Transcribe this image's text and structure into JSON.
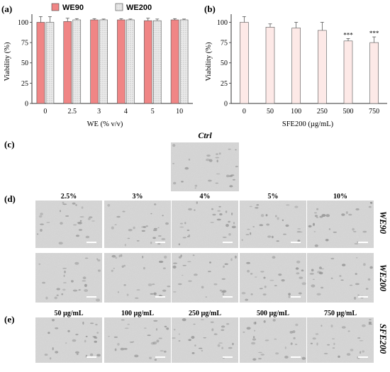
{
  "panels": {
    "a": "(a)",
    "b": "(b)",
    "c": "(c)",
    "d": "(d)",
    "e": "(e)"
  },
  "chart_data": [
    {
      "type": "bar",
      "panel": "(a)",
      "categories": [
        "0",
        "2.5",
        "3",
        "4",
        "5",
        "10"
      ],
      "series": [
        {
          "name": "WE90",
          "values": [
            100,
            101,
            103,
            103,
            102,
            103
          ],
          "errors": [
            7,
            4,
            1.5,
            1.5,
            3,
            1.5
          ],
          "color": "#f08585"
        },
        {
          "name": "WE200",
          "values": [
            100,
            103,
            103,
            103,
            102,
            103
          ],
          "errors": [
            7,
            1.5,
            1,
            1,
            2,
            1
          ],
          "color": "#e6e6e6"
        }
      ],
      "xlabel": "WE (% v/v)",
      "ylabel": "Viability (%)",
      "ylim": [
        0,
        110
      ],
      "yticks": [
        "0",
        "25",
        "50",
        "75",
        "100"
      ],
      "legend": "top",
      "grid": false
    },
    {
      "type": "bar",
      "panel": "(b)",
      "categories": [
        "0",
        "50",
        "100",
        "250",
        "500",
        "750"
      ],
      "values": [
        100,
        94,
        93,
        90,
        77,
        75
      ],
      "errors": [
        7,
        4,
        7,
        10,
        3,
        7
      ],
      "significance": [
        "",
        "",
        "",
        "",
        "***",
        "***"
      ],
      "color": "#fde9e7",
      "xlabel": "SFE200 (µg/mL)",
      "ylabel": "Viability (%)",
      "ylim": [
        0,
        110
      ],
      "yticks": [
        "0",
        "25",
        "50",
        "75",
        "100"
      ],
      "grid": false
    }
  ],
  "micrographs": {
    "ctrl_label": "Ctrl",
    "we_columns": [
      "2.5%",
      "3%",
      "4%",
      "5%",
      "10%"
    ],
    "we_rows": [
      "WE90",
      "WE200"
    ],
    "sfe_columns": [
      "50 µg/mL",
      "100 µg/mL",
      "250 µg/mL",
      "500 µg/mL",
      "750 µg/mL"
    ],
    "sfe_row": "SFE200"
  }
}
